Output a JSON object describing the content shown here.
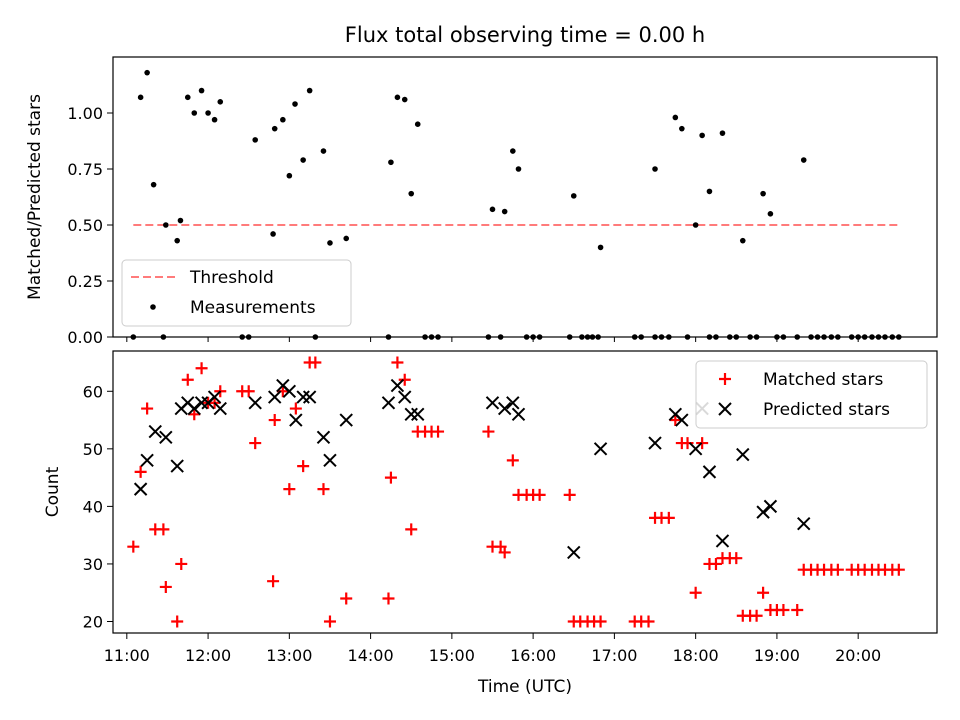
{
  "chart_data": [
    {
      "type": "scatter",
      "title": "Flux total observing time = 0.00 h",
      "xlabel": "",
      "ylabel": "Matched/Predicted stars",
      "ylim": [
        0,
        1.25
      ],
      "xlim": [
        10.83,
        20.97
      ],
      "yticks": [
        "0.00",
        "0.25",
        "0.50",
        "0.75",
        "1.00"
      ],
      "grid": false,
      "legend_position": "lower-left",
      "threshold": {
        "name": "Threshold",
        "value": 0.5,
        "x_start": 11.08,
        "x_end": 20.5,
        "color": "#ff7b7b"
      },
      "series": [
        {
          "name": "Measurements",
          "color": "#000000",
          "points": [
            [
              11.08,
              0
            ],
            [
              11.17,
              1.07
            ],
            [
              11.25,
              1.18
            ],
            [
              11.33,
              0.68
            ],
            [
              11.45,
              0
            ],
            [
              11.48,
              0.5
            ],
            [
              11.62,
              0.43
            ],
            [
              11.66,
              0.52
            ],
            [
              11.75,
              1.07
            ],
            [
              11.83,
              1.0
            ],
            [
              11.92,
              1.1
            ],
            [
              12.0,
              1.0
            ],
            [
              12.08,
              0.97
            ],
            [
              12.15,
              1.05
            ],
            [
              12.42,
              0
            ],
            [
              12.5,
              0
            ],
            [
              12.58,
              0.88
            ],
            [
              12.8,
              0.46
            ],
            [
              12.82,
              0.93
            ],
            [
              12.92,
              0.97
            ],
            [
              13.0,
              0.72
            ],
            [
              13.07,
              1.04
            ],
            [
              13.17,
              0.79
            ],
            [
              13.25,
              1.1
            ],
            [
              13.32,
              0
            ],
            [
              13.42,
              0.83
            ],
            [
              13.5,
              0.42
            ],
            [
              13.7,
              0.44
            ],
            [
              14.22,
              0
            ],
            [
              14.25,
              0.78
            ],
            [
              14.33,
              1.07
            ],
            [
              14.42,
              1.06
            ],
            [
              14.5,
              0.64
            ],
            [
              14.58,
              0.95
            ],
            [
              14.67,
              0
            ],
            [
              14.75,
              0
            ],
            [
              14.83,
              0
            ],
            [
              15.45,
              0
            ],
            [
              15.5,
              0.57
            ],
            [
              15.6,
              0
            ],
            [
              15.65,
              0.56
            ],
            [
              15.75,
              0.83
            ],
            [
              15.82,
              0.75
            ],
            [
              15.92,
              0
            ],
            [
              16.0,
              0
            ],
            [
              16.08,
              0
            ],
            [
              16.45,
              0
            ],
            [
              16.5,
              0.63
            ],
            [
              16.6,
              0
            ],
            [
              16.67,
              0
            ],
            [
              16.73,
              0
            ],
            [
              16.8,
              0
            ],
            [
              16.83,
              0.4
            ],
            [
              17.25,
              0
            ],
            [
              17.33,
              0
            ],
            [
              17.5,
              0
            ],
            [
              17.5,
              0.75
            ],
            [
              17.58,
              0
            ],
            [
              17.67,
              0
            ],
            [
              17.75,
              0.98
            ],
            [
              17.83,
              0.93
            ],
            [
              17.9,
              0
            ],
            [
              18.0,
              0.5
            ],
            [
              18.08,
              0.9
            ],
            [
              18.17,
              0.65
            ],
            [
              18.17,
              0
            ],
            [
              18.25,
              0
            ],
            [
              18.33,
              0.91
            ],
            [
              18.42,
              0
            ],
            [
              18.5,
              0
            ],
            [
              18.58,
              0.43
            ],
            [
              18.67,
              0
            ],
            [
              18.75,
              0
            ],
            [
              18.83,
              0.64
            ],
            [
              18.92,
              0.55
            ],
            [
              19.0,
              0
            ],
            [
              19.08,
              0
            ],
            [
              19.25,
              0
            ],
            [
              19.33,
              0.79
            ],
            [
              19.42,
              0
            ],
            [
              19.5,
              0
            ],
            [
              19.58,
              0
            ],
            [
              19.67,
              0
            ],
            [
              19.75,
              0
            ],
            [
              19.92,
              0
            ],
            [
              20.0,
              0
            ],
            [
              20.08,
              0
            ],
            [
              20.17,
              0
            ],
            [
              20.25,
              0
            ],
            [
              20.33,
              0
            ],
            [
              20.42,
              0
            ],
            [
              20.5,
              0
            ]
          ]
        }
      ]
    },
    {
      "type": "scatter",
      "title": "",
      "xlabel": "Time (UTC)",
      "ylabel": "Count",
      "ylim": [
        18,
        67
      ],
      "xlim": [
        10.83,
        20.97
      ],
      "yticks": [
        "20",
        "30",
        "40",
        "50",
        "60"
      ],
      "xticks": [
        "11:00",
        "12:00",
        "13:00",
        "14:00",
        "15:00",
        "16:00",
        "17:00",
        "18:00",
        "19:00",
        "20:00"
      ],
      "grid": false,
      "legend_position": "upper-right",
      "series": [
        {
          "name": "Matched stars",
          "marker": "+",
          "color": "#ff0000",
          "points": [
            [
              11.08,
              33
            ],
            [
              11.17,
              46
            ],
            [
              11.25,
              57
            ],
            [
              11.35,
              36
            ],
            [
              11.45,
              36
            ],
            [
              11.48,
              26
            ],
            [
              11.62,
              20
            ],
            [
              11.67,
              30
            ],
            [
              11.75,
              62
            ],
            [
              11.83,
              56
            ],
            [
              11.92,
              64
            ],
            [
              12.0,
              58
            ],
            [
              12.08,
              58
            ],
            [
              12.15,
              60
            ],
            [
              12.42,
              60
            ],
            [
              12.5,
              60
            ],
            [
              12.58,
              51
            ],
            [
              12.8,
              27
            ],
            [
              12.82,
              55
            ],
            [
              12.92,
              60
            ],
            [
              13.0,
              43
            ],
            [
              13.08,
              57
            ],
            [
              13.17,
              47
            ],
            [
              13.25,
              65
            ],
            [
              13.32,
              65
            ],
            [
              13.42,
              43
            ],
            [
              13.5,
              20
            ],
            [
              13.7,
              24
            ],
            [
              14.22,
              24
            ],
            [
              14.25,
              45
            ],
            [
              14.33,
              65
            ],
            [
              14.42,
              62
            ],
            [
              14.5,
              36
            ],
            [
              14.58,
              53
            ],
            [
              14.67,
              53
            ],
            [
              14.75,
              53
            ],
            [
              14.83,
              53
            ],
            [
              15.45,
              53
            ],
            [
              15.5,
              33
            ],
            [
              15.6,
              33
            ],
            [
              15.65,
              32
            ],
            [
              15.75,
              48
            ],
            [
              15.82,
              42
            ],
            [
              15.92,
              42
            ],
            [
              16.0,
              42
            ],
            [
              16.08,
              42
            ],
            [
              16.45,
              42
            ],
            [
              16.5,
              20
            ],
            [
              16.58,
              20
            ],
            [
              16.67,
              20
            ],
            [
              16.75,
              20
            ],
            [
              16.83,
              20
            ],
            [
              17.25,
              20
            ],
            [
              17.33,
              20
            ],
            [
              17.42,
              20
            ],
            [
              17.5,
              38
            ],
            [
              17.58,
              38
            ],
            [
              17.67,
              38
            ],
            [
              17.75,
              55
            ],
            [
              17.83,
              51
            ],
            [
              17.9,
              51
            ],
            [
              18.0,
              25
            ],
            [
              18.08,
              51
            ],
            [
              18.17,
              30
            ],
            [
              18.25,
              30
            ],
            [
              18.33,
              31
            ],
            [
              18.42,
              31
            ],
            [
              18.5,
              31
            ],
            [
              18.58,
              21
            ],
            [
              18.67,
              21
            ],
            [
              18.75,
              21
            ],
            [
              18.83,
              25
            ],
            [
              18.92,
              22
            ],
            [
              19.0,
              22
            ],
            [
              19.08,
              22
            ],
            [
              19.25,
              22
            ],
            [
              19.33,
              29
            ],
            [
              19.42,
              29
            ],
            [
              19.5,
              29
            ],
            [
              19.58,
              29
            ],
            [
              19.67,
              29
            ],
            [
              19.75,
              29
            ],
            [
              19.92,
              29
            ],
            [
              20.0,
              29
            ],
            [
              20.08,
              29
            ],
            [
              20.17,
              29
            ],
            [
              20.25,
              29
            ],
            [
              20.33,
              29
            ],
            [
              20.42,
              29
            ],
            [
              20.5,
              29
            ]
          ]
        },
        {
          "name": "Predicted stars",
          "marker": "x",
          "color": "#000000",
          "points": [
            [
              11.17,
              43
            ],
            [
              11.25,
              48
            ],
            [
              11.35,
              53
            ],
            [
              11.48,
              52
            ],
            [
              11.62,
              47
            ],
            [
              11.67,
              57
            ],
            [
              11.75,
              58
            ],
            [
              11.83,
              57
            ],
            [
              11.92,
              58
            ],
            [
              12.0,
              58
            ],
            [
              12.08,
              59
            ],
            [
              12.15,
              57
            ],
            [
              12.58,
              58
            ],
            [
              12.82,
              59
            ],
            [
              12.92,
              61
            ],
            [
              13.0,
              60
            ],
            [
              13.08,
              55
            ],
            [
              13.17,
              59
            ],
            [
              13.25,
              59
            ],
            [
              13.42,
              52
            ],
            [
              13.5,
              48
            ],
            [
              13.7,
              55
            ],
            [
              14.22,
              58
            ],
            [
              14.33,
              61
            ],
            [
              14.42,
              59
            ],
            [
              14.5,
              56
            ],
            [
              14.58,
              56
            ],
            [
              15.5,
              58
            ],
            [
              15.65,
              57
            ],
            [
              15.75,
              58
            ],
            [
              15.82,
              56
            ],
            [
              16.5,
              32
            ],
            [
              16.83,
              50
            ],
            [
              17.5,
              51
            ],
            [
              17.75,
              56
            ],
            [
              17.83,
              55
            ],
            [
              18.0,
              50
            ],
            [
              18.08,
              57
            ],
            [
              18.17,
              46
            ],
            [
              18.33,
              34
            ],
            [
              18.58,
              49
            ],
            [
              18.83,
              39
            ],
            [
              18.92,
              40
            ],
            [
              19.33,
              37
            ]
          ]
        }
      ]
    }
  ]
}
